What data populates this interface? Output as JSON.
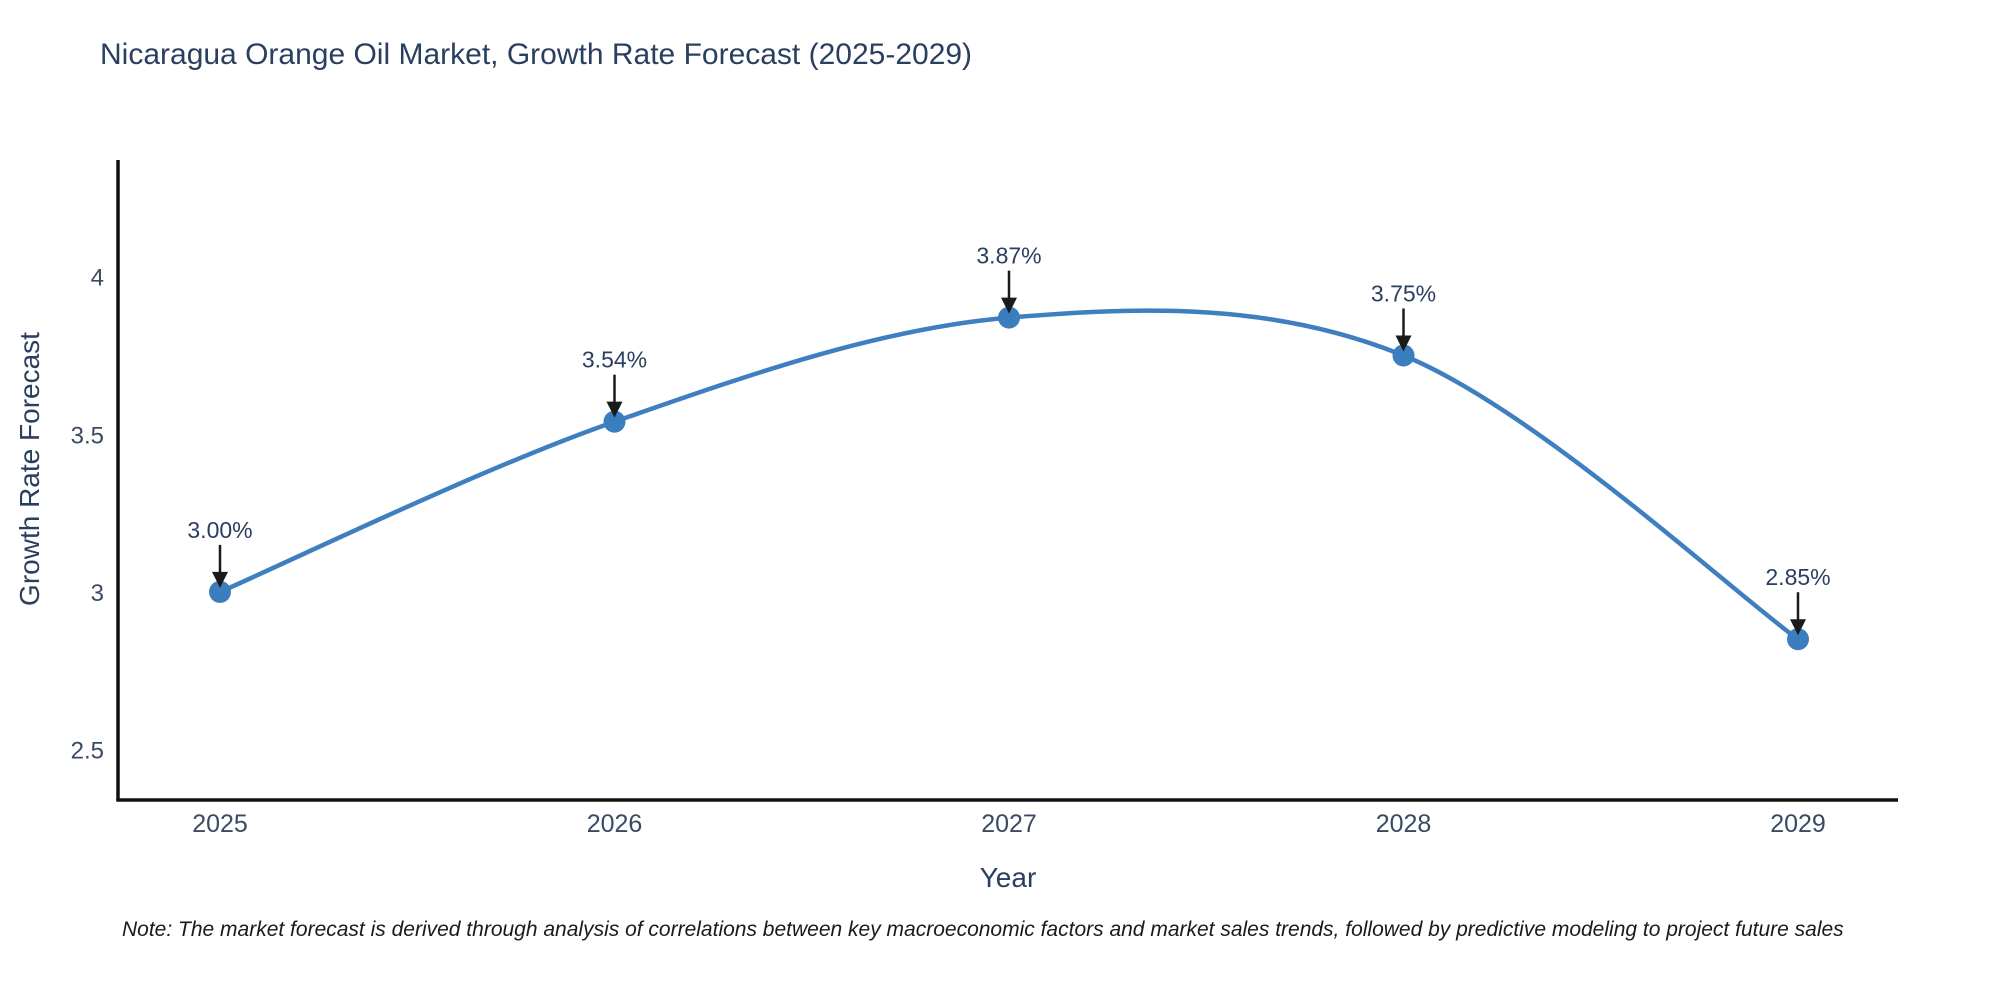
{
  "title": "Nicaragua Orange Oil Market, Growth Rate Forecast (2025-2029)",
  "note": "Note: The market forecast is derived through analysis of correlations between key macroeconomic factors and market sales trends, followed by predictive modeling to project future sales",
  "chart_data": {
    "type": "line",
    "title": "Nicaragua Orange Oil Market, Growth Rate Forecast (2025-2029)",
    "xlabel": "Year",
    "ylabel": "Growth Rate Forecast",
    "categories": [
      "2025",
      "2026",
      "2027",
      "2028",
      "2029"
    ],
    "series": [
      {
        "name": "Growth Rate Forecast",
        "values": [
          3.0,
          3.54,
          3.87,
          3.75,
          2.85
        ]
      }
    ],
    "point_labels": [
      "3.00%",
      "3.54%",
      "3.87%",
      "3.75%",
      "2.85%"
    ],
    "y_ticks": [
      2.5,
      3,
      3.5,
      4
    ],
    "y_tick_labels": [
      "2.5",
      "3",
      "3.5",
      "4"
    ],
    "ylim": [
      2.34,
      4.37
    ],
    "grid": false,
    "legend_position": "none",
    "curve": "spline",
    "colors": {
      "line": "#3f7fbf",
      "marker": "#3a7ebd",
      "axis": "#111111",
      "tick_text": "#3b4a63",
      "annotation_text": "#2a3f5f",
      "annotation_arrow": "#1a1a1a",
      "title_text": "#2a3f5f"
    }
  }
}
